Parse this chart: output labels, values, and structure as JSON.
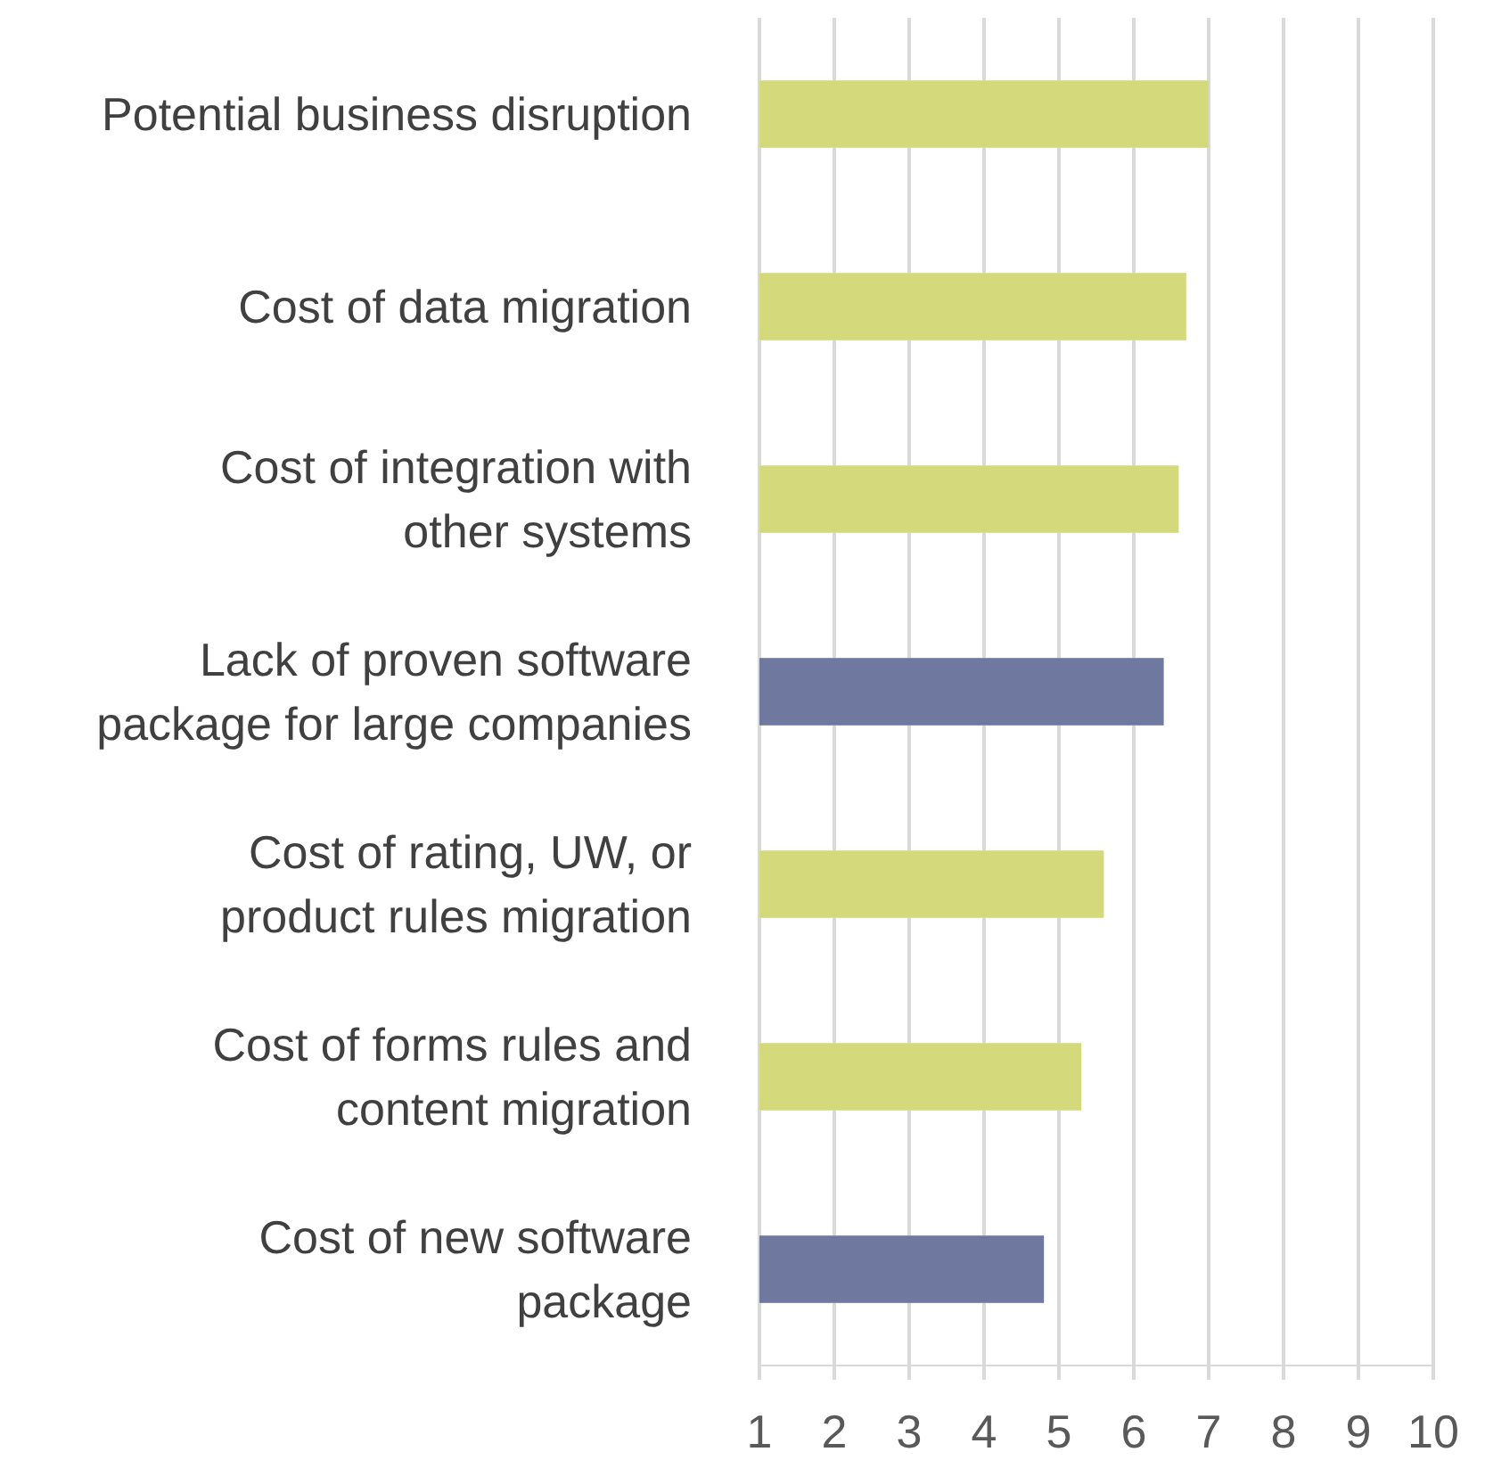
{
  "chart_data": {
    "type": "bar",
    "orientation": "horizontal",
    "categories": [
      "Potential business disruption",
      "Cost of data migration",
      "Cost of integration with other systems",
      "Lack of proven software package for large companies",
      "Cost of rating, UW, or product rules migration",
      "Cost of forms rules and content migration",
      "Cost of new software package"
    ],
    "values": [
      7.0,
      6.7,
      6.6,
      6.4,
      5.6,
      5.3,
      4.8
    ],
    "colors": [
      "#d4da7c",
      "#d4da7c",
      "#d4da7c",
      "#6f79a0",
      "#d4da7c",
      "#d4da7c",
      "#6f79a0"
    ],
    "xlim": [
      1,
      10
    ],
    "xticks": [
      1,
      2,
      3,
      4,
      5,
      6,
      7,
      8,
      9,
      10
    ],
    "grid": "x"
  }
}
